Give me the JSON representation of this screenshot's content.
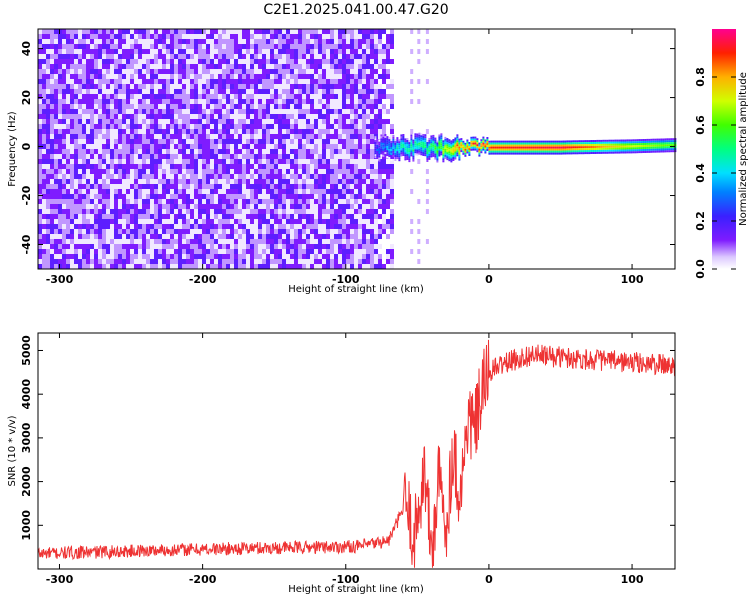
{
  "title": "C2E1.2025.041.00.47.G20",
  "chart_data": [
    {
      "type": "heatmap",
      "xlabel": "Height of straight line (km)",
      "ylabel": "Frequency (Hz)",
      "xlim": [
        -315,
        130
      ],
      "ylim": [
        -50,
        48
      ],
      "x_ticks": [
        "-300",
        "-200",
        "-100",
        "0",
        "100"
      ],
      "y_ticks": [
        "40",
        "20",
        "0",
        "-20",
        "-40"
      ],
      "noise_region": {
        "x": [
          -315,
          -80
        ],
        "y": [
          -50,
          48
        ],
        "amplitude": [
          0.05,
          0.2
        ]
      },
      "signal_band": [
        {
          "x": -80,
          "freq": 0,
          "amp": 0.25
        },
        {
          "x": -60,
          "freq": 0,
          "amp": 0.45
        },
        {
          "x": -40,
          "freq": 0,
          "amp": 0.5
        },
        {
          "x": -20,
          "freq": 0,
          "amp": 0.85
        },
        {
          "x": 0,
          "freq": 0,
          "amp": 0.9
        },
        {
          "x": 50,
          "freq": 0,
          "amp": 0.95
        },
        {
          "x": 100,
          "freq": 0.5,
          "amp": 0.7
        },
        {
          "x": 130,
          "freq": 1,
          "amp": 0.6
        }
      ],
      "colorbar": {
        "label": "Normalized spectral amplitude",
        "range": [
          0,
          1
        ],
        "ticks": [
          "0.0",
          "0.2",
          "0.4",
          "0.6",
          "0.8"
        ]
      }
    },
    {
      "type": "line",
      "xlabel": "Height of straight line (km)",
      "ylabel": "SNR (10 * v/v)",
      "xlim": [
        -315,
        130
      ],
      "ylim": [
        0,
        5400
      ],
      "x_ticks": [
        "-300",
        "-200",
        "-100",
        "0",
        "100"
      ],
      "y_ticks": [
        "1000",
        "2000",
        "3000",
        "4000",
        "5000"
      ],
      "color": "#ee3333",
      "series": [
        {
          "x": [
            -315,
            -280,
            -240,
            -200,
            -160,
            -120,
            -90,
            -70,
            -58,
            -52,
            -45,
            -40,
            -35,
            -30,
            -25,
            -20,
            -15,
            -10,
            -5,
            0,
            10,
            20,
            30,
            50,
            70,
            90,
            110,
            130
          ],
          "y": [
            350,
            380,
            420,
            450,
            480,
            500,
            520,
            650,
            1500,
            700,
            2300,
            300,
            2100,
            900,
            2800,
            1600,
            3400,
            3200,
            4000,
            4500,
            4700,
            4800,
            4900,
            4850,
            4800,
            4750,
            4700,
            4650
          ]
        }
      ]
    }
  ]
}
